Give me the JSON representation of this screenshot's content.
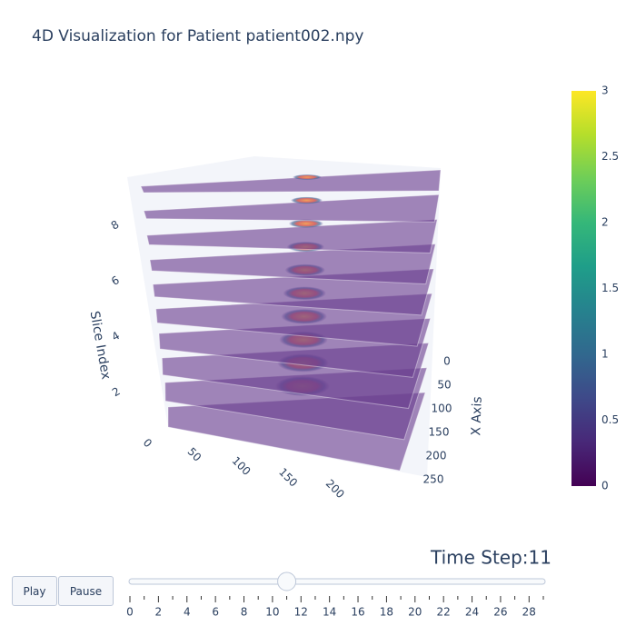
{
  "chart_data": {
    "type": "slices3d",
    "title": "4D Visualization for Patient patient002.npy",
    "zaxis": {
      "title": "Slice Index",
      "range": [
        0,
        9
      ],
      "ticks": [
        2,
        4,
        6,
        8
      ]
    },
    "xaxis": {
      "title": "X Axis",
      "range": [
        0,
        250
      ],
      "ticks": [
        0,
        50,
        100,
        150,
        200,
        250
      ]
    },
    "yaxis": {
      "range": [
        0,
        250
      ],
      "ticks": [
        0,
        50,
        100,
        150,
        200
      ]
    },
    "slices": [
      0,
      1,
      2,
      3,
      4,
      5,
      6,
      7,
      8,
      9
    ],
    "plane_color": "#6b3f8f",
    "colorbar": {
      "range": [
        0,
        3
      ],
      "ticks": [
        0,
        0.5,
        1,
        1.5,
        2,
        2.5,
        3
      ],
      "colorscale": [
        "#440154",
        "#482878",
        "#3e4989",
        "#31688e",
        "#26828e",
        "#1f9e89",
        "#35b779",
        "#6ece58",
        "#b5de2b",
        "#fde725"
      ]
    },
    "buttons": [
      "Play",
      "Pause"
    ],
    "slider": {
      "range": [
        0,
        29
      ],
      "value": 11,
      "current_label": "Time Step:11",
      "ticks": [
        0,
        2,
        4,
        6,
        8,
        10,
        12,
        14,
        16,
        18,
        20,
        22,
        24,
        26,
        28
      ],
      "minor_ticks": [
        1,
        3,
        5,
        7,
        9,
        11,
        13,
        15,
        17,
        19,
        21,
        23,
        25,
        27,
        29
      ]
    }
  }
}
